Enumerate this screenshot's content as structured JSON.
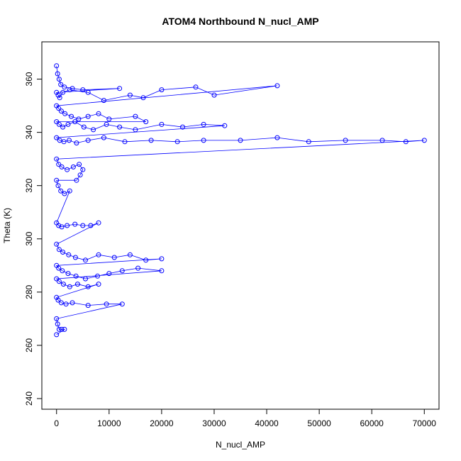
{
  "chart_data": {
    "type": "scatter",
    "title": "ATOM4 Northbound N_nucl_AMP",
    "xlabel": "N_nucl_AMP",
    "ylabel": "Theta (K)",
    "xlim": [
      -2800,
      72800
    ],
    "ylim": [
      236,
      374
    ],
    "xticks": [
      0,
      10000,
      20000,
      30000,
      40000,
      50000,
      60000,
      70000
    ],
    "xtick_labels": [
      "0",
      "10000",
      "20000",
      "30000",
      "40000",
      "50000",
      "60000",
      "70000"
    ],
    "yticks": [
      240,
      260,
      280,
      300,
      320,
      340,
      360
    ],
    "ytick_labels": [
      "240",
      "260",
      "280",
      "300",
      "320",
      "340",
      "360"
    ],
    "grid": false,
    "legend": "none",
    "colors": {
      "series": "#0000ff",
      "axes": "#000000"
    },
    "series": [
      {
        "style": "points-and-lines",
        "x": [
          0,
          200,
          500,
          800,
          1500,
          3000,
          5000,
          12000,
          0,
          300,
          600,
          1200,
          2500,
          6000,
          9000,
          14000,
          16500,
          20000,
          26500,
          30000,
          42000,
          0,
          400,
          900,
          1600,
          2800,
          4200,
          6000,
          8000,
          10000,
          15000,
          17000,
          0,
          500,
          1200,
          2200,
          3500,
          5200,
          7000,
          9500,
          12000,
          15000,
          20000,
          24000,
          28000,
          32000,
          0,
          600,
          1400,
          2400,
          3800,
          6000,
          9000,
          13000,
          18000,
          23000,
          28000,
          35000,
          42000,
          48000,
          55000,
          62000,
          66500,
          70000,
          0,
          400,
          1000,
          2000,
          3200,
          4300,
          5000,
          4500,
          3800,
          0,
          300,
          800,
          1500,
          2500,
          0,
          400,
          1000,
          2000,
          3500,
          5000,
          6500,
          8000,
          0,
          500,
          1200,
          2300,
          3600,
          5500,
          8000,
          11000,
          14000,
          17000,
          20000,
          0,
          400,
          1100,
          2200,
          3700,
          5500,
          7800,
          10000,
          12500,
          15500,
          20000,
          0,
          500,
          1300,
          2500,
          4000,
          6000,
          8000,
          0,
          300,
          900,
          1800,
          3000,
          6000,
          9500,
          12500,
          0,
          200,
          500,
          1000,
          1500,
          0
        ],
        "y": [
          365,
          362,
          360,
          358,
          357,
          356.5,
          356,
          356.5,
          355,
          354,
          353,
          355,
          356,
          355,
          352,
          354,
          353,
          356,
          357,
          354,
          357.5,
          350,
          349,
          348,
          347,
          346,
          345,
          346,
          347,
          345,
          346,
          344,
          344,
          343,
          342,
          343,
          344,
          342,
          341,
          343,
          342,
          341,
          343,
          342,
          343,
          342.5,
          338,
          337,
          336.5,
          337,
          336,
          337,
          338,
          336.5,
          337,
          336.5,
          337,
          337,
          338,
          336.5,
          337,
          337,
          336.5,
          337,
          330,
          328,
          327,
          326,
          327,
          328,
          326,
          324,
          322,
          322,
          320,
          318,
          317,
          318,
          306,
          305,
          304.5,
          305,
          305.5,
          305,
          305,
          306,
          298,
          296,
          295,
          294,
          293,
          292,
          294,
          293,
          294,
          292,
          292.5,
          290,
          289,
          288,
          287,
          286,
          285,
          286,
          287,
          288,
          289,
          288,
          285,
          284,
          283,
          282,
          283,
          282,
          283,
          278,
          277,
          276,
          275.5,
          276,
          275,
          275.5,
          275.5,
          270,
          268,
          266,
          266,
          266,
          264
        ]
      }
    ]
  }
}
